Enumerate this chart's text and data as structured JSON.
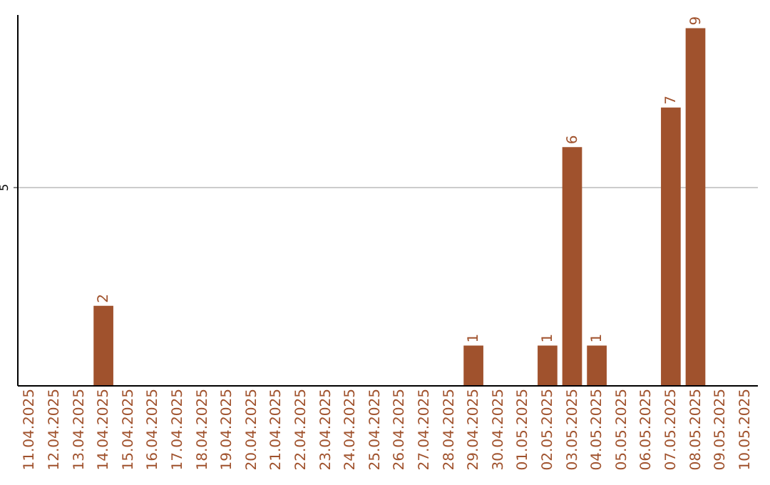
{
  "chart_data": {
    "type": "bar",
    "categories": [
      "11.04.2025",
      "12.04.2025",
      "13.04.2025",
      "14.04.2025",
      "15.04.2025",
      "16.04.2025",
      "17.04.2025",
      "18.04.2025",
      "19.04.2025",
      "20.04.2025",
      "21.04.2025",
      "22.04.2025",
      "23.04.2025",
      "24.04.2025",
      "25.04.2025",
      "26.04.2025",
      "27.04.2025",
      "28.04.2025",
      "29.04.2025",
      "30.04.2025",
      "01.05.2025",
      "02.05.2025",
      "03.05.2025",
      "04.05.2025",
      "05.05.2025",
      "06.05.2025",
      "07.05.2025",
      "08.05.2025",
      "09.05.2025",
      "10.05.2025"
    ],
    "values": [
      null,
      null,
      null,
      2,
      null,
      null,
      null,
      null,
      null,
      null,
      null,
      null,
      null,
      null,
      null,
      null,
      null,
      null,
      1,
      null,
      null,
      1,
      6,
      1,
      null,
      null,
      7,
      9,
      null,
      null
    ],
    "color": "#a0522d",
    "ylim": [
      0,
      9.35
    ],
    "yticks": [
      5
    ],
    "grid": "y",
    "data_labels": true
  }
}
